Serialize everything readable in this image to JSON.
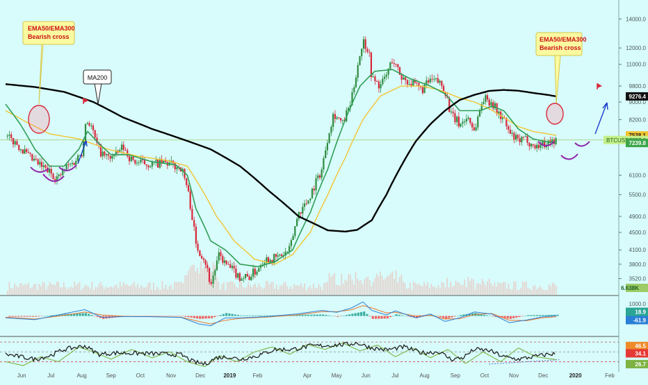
{
  "colors": {
    "background": "#d8fbfb",
    "up_candle": "#2e8b3e",
    "down_candle": "#d8283a",
    "ma200": "#000000",
    "ema50": "#2f9e55",
    "ema300": "#f2c531",
    "callout_fill": "#fafaa0",
    "callout_text": "#cc1111",
    "volume": "#e7c9c2",
    "macd_line": "#2a7fd6",
    "signal_line": "#e8762b",
    "hist_up": "#2aa596",
    "hist_down": "#ef5350",
    "rsi_main": "#222222",
    "rsi_alt": "#7cb342",
    "arc": "#8e24aa",
    "arrow": "#1034c8"
  },
  "chart_data": [
    {
      "type": "candlestick",
      "symbol": "BTCUSD",
      "scale": "log",
      "ylim": [
        3350,
        14600
      ],
      "y_ticks": [
        "14000.0",
        "12000.0",
        "11000.0",
        "9800.0",
        "9000.0",
        "8200.0",
        "7538.1",
        "7357.0",
        "6100.0",
        "5500.0",
        "4900.0",
        "4500.0",
        "4100.0",
        "3800.0",
        "3520.0"
      ],
      "x_ticks": [
        "Jun",
        "Jul",
        "Aug",
        "Sep",
        "Oct",
        "Nov",
        "Dec",
        "2019",
        "Feb",
        "Apr",
        "May",
        "Jun",
        "Jul",
        "Aug",
        "Sep",
        "Oct",
        "Nov",
        "Dec",
        "2020",
        "Feb"
      ],
      "x_range": [
        0,
        20
      ],
      "price_path": [
        [
          0,
          7500
        ],
        [
          0.4,
          7200
        ],
        [
          0.8,
          6700
        ],
        [
          1.2,
          6400
        ],
        [
          1.5,
          6200
        ],
        [
          1.8,
          6000
        ],
        [
          2.1,
          6400
        ],
        [
          2.3,
          6500
        ],
        [
          2.6,
          6900
        ],
        [
          2.75,
          8200
        ],
        [
          2.9,
          8000
        ],
        [
          3.1,
          7200
        ],
        [
          3.3,
          6800
        ],
        [
          3.5,
          6700
        ],
        [
          3.8,
          6800
        ],
        [
          4.0,
          7100
        ],
        [
          4.3,
          6600
        ],
        [
          4.6,
          6500
        ],
        [
          5.0,
          6480
        ],
        [
          5.5,
          6500
        ],
        [
          5.8,
          6400
        ],
        [
          6.0,
          6350
        ],
        [
          6.2,
          5700
        ],
        [
          6.35,
          5000
        ],
        [
          6.5,
          4200
        ],
        [
          6.8,
          3900
        ],
        [
          7.0,
          3400
        ],
        [
          7.15,
          3700
        ],
        [
          7.3,
          4000
        ],
        [
          7.5,
          3800
        ],
        [
          7.7,
          3700
        ],
        [
          8.0,
          3550
        ],
        [
          8.3,
          3550
        ],
        [
          8.6,
          3700
        ],
        [
          8.8,
          3900
        ],
        [
          9.2,
          3920
        ],
        [
          9.5,
          4000
        ],
        [
          9.7,
          4100
        ],
        [
          10.0,
          5000
        ],
        [
          10.3,
          5300
        ],
        [
          10.5,
          5700
        ],
        [
          10.8,
          6300
        ],
        [
          11.0,
          7500
        ],
        [
          11.2,
          8500
        ],
        [
          11.5,
          8000
        ],
        [
          11.8,
          9000
        ],
        [
          12.0,
          10800
        ],
        [
          12.2,
          12500
        ],
        [
          12.4,
          11800
        ],
        [
          12.5,
          10200
        ],
        [
          12.8,
          9800
        ],
        [
          13.0,
          10400
        ],
        [
          13.2,
          11300
        ],
        [
          13.5,
          10300
        ],
        [
          13.8,
          10000
        ],
        [
          14.2,
          9600
        ],
        [
          14.5,
          10100
        ],
        [
          14.8,
          10000
        ],
        [
          15.0,
          9600
        ],
        [
          15.2,
          8400
        ],
        [
          15.5,
          8000
        ],
        [
          15.8,
          8300
        ],
        [
          16.0,
          7700
        ],
        [
          16.3,
          9200
        ],
        [
          16.6,
          9000
        ],
        [
          16.8,
          8500
        ],
        [
          17.0,
          8200
        ],
        [
          17.2,
          7600
        ],
        [
          17.5,
          7300
        ],
        [
          17.8,
          7400
        ],
        [
          18.0,
          7100
        ],
        [
          18.3,
          7200
        ],
        [
          18.5,
          7250
        ],
        [
          18.8,
          7357
        ]
      ],
      "series": [
        {
          "name": "MA200",
          "values": [
            [
              0,
              9900
            ],
            [
              1,
              9750
            ],
            [
              2,
              9500
            ],
            [
              3,
              9000
            ],
            [
              4,
              8300
            ],
            [
              5,
              7800
            ],
            [
              6,
              7400
            ],
            [
              7,
              7000
            ],
            [
              8,
              6400
            ],
            [
              9,
              5600
            ],
            [
              10,
              4900
            ],
            [
              11,
              4550
            ],
            [
              11.6,
              4520
            ],
            [
              12,
              4560
            ],
            [
              12.5,
              4800
            ],
            [
              13,
              5500
            ],
            [
              13.5,
              6400
            ],
            [
              14,
              7300
            ],
            [
              14.5,
              8000
            ],
            [
              15,
              8600
            ],
            [
              15.5,
              9100
            ],
            [
              16,
              9350
            ],
            [
              16.5,
              9550
            ],
            [
              17,
              9600
            ],
            [
              17.5,
              9560
            ],
            [
              18,
              9450
            ],
            [
              18.5,
              9350
            ],
            [
              18.8,
              9276.4
            ]
          ]
        },
        {
          "name": "EMA50",
          "values": [
            [
              0,
              8900
            ],
            [
              0.5,
              8000
            ],
            [
              1,
              7000
            ],
            [
              1.5,
              6400
            ],
            [
              2,
              6400
            ],
            [
              2.5,
              7000
            ],
            [
              2.8,
              7700
            ],
            [
              3.2,
              7200
            ],
            [
              3.6,
              6800
            ],
            [
              4.2,
              6800
            ],
            [
              5,
              6550
            ],
            [
              5.8,
              6450
            ],
            [
              6.2,
              6100
            ],
            [
              6.5,
              5100
            ],
            [
              7,
              4300
            ],
            [
              7.5,
              4100
            ],
            [
              8,
              3800
            ],
            [
              8.6,
              3750
            ],
            [
              9.2,
              3850
            ],
            [
              9.8,
              4100
            ],
            [
              10.4,
              5000
            ],
            [
              11,
              6300
            ],
            [
              11.6,
              8200
            ],
            [
              12.1,
              9800
            ],
            [
              12.6,
              10600
            ],
            [
              13.2,
              10700
            ],
            [
              13.8,
              10200
            ],
            [
              14.5,
              9800
            ],
            [
              15,
              9400
            ],
            [
              15.5,
              8600
            ],
            [
              16.2,
              8600
            ],
            [
              16.6,
              8800
            ],
            [
              17,
              8600
            ],
            [
              17.5,
              7800
            ],
            [
              18,
              7400
            ],
            [
              18.5,
              7280
            ],
            [
              18.8,
              7239.8
            ]
          ]
        },
        {
          "name": "EMA300",
          "values": [
            [
              0,
              8600
            ],
            [
              0.7,
              8100
            ],
            [
              1.5,
              7600
            ],
            [
              2.5,
              7400
            ],
            [
              3.5,
              7000
            ],
            [
              4.5,
              6750
            ],
            [
              5.5,
              6600
            ],
            [
              6.2,
              6400
            ],
            [
              6.6,
              5800
            ],
            [
              7.2,
              4900
            ],
            [
              7.8,
              4300
            ],
            [
              8.5,
              3900
            ],
            [
              9.2,
              3800
            ],
            [
              9.8,
              4000
            ],
            [
              10.4,
              4500
            ],
            [
              11,
              5500
            ],
            [
              11.6,
              6700
            ],
            [
              12.2,
              8200
            ],
            [
              12.8,
              9300
            ],
            [
              13.5,
              9800
            ],
            [
              14.2,
              9800
            ],
            [
              14.8,
              9600
            ],
            [
              15.5,
              9200
            ],
            [
              16,
              9000
            ],
            [
              16.5,
              8700
            ],
            [
              17,
              8300
            ],
            [
              17.5,
              7900
            ],
            [
              18,
              7700
            ],
            [
              18.5,
              7600
            ],
            [
              18.8,
              7538.1
            ]
          ]
        }
      ],
      "price_labels": [
        {
          "name": "MA200",
          "value": 9276.4,
          "text": "9276.4"
        },
        {
          "name": "EMA300",
          "value": 7538.1,
          "text": "7538.1"
        },
        {
          "name": "Last",
          "value": 7357.0,
          "text": "7357.0"
        },
        {
          "name": "EMA50",
          "value": 7239.8,
          "text": "7239.8"
        }
      ],
      "annotations": {
        "callout_left": {
          "line1": "EMA50/EMA300",
          "line2": "Bearish cross"
        },
        "callout_right": {
          "line1": "EMA50/EMA300",
          "line2": "Bearish cross"
        },
        "ma200_label": "MA200",
        "volume_label": "6.638K"
      }
    },
    {
      "type": "line",
      "panel": "MACD",
      "ylim": [
        -1500,
        1500
      ],
      "y_ticks": [
        "1000.0"
      ],
      "latest_values": [
        "18.9",
        "-61.9"
      ],
      "macd_path": [
        [
          0,
          -150
        ],
        [
          1,
          -300
        ],
        [
          2,
          180
        ],
        [
          2.7,
          520
        ],
        [
          3.3,
          -120
        ],
        [
          4,
          -50
        ],
        [
          5,
          -60
        ],
        [
          6,
          -120
        ],
        [
          6.6,
          -650
        ],
        [
          7,
          -800
        ],
        [
          7.5,
          -150
        ],
        [
          8,
          -160
        ],
        [
          9,
          -40
        ],
        [
          10,
          180
        ],
        [
          10.8,
          450
        ],
        [
          11.3,
          300
        ],
        [
          11.8,
          650
        ],
        [
          12.2,
          1150
        ],
        [
          12.5,
          450
        ],
        [
          13,
          80
        ],
        [
          13.3,
          420
        ],
        [
          14,
          -150
        ],
        [
          14.5,
          160
        ],
        [
          15,
          -450
        ],
        [
          15.5,
          -150
        ],
        [
          16,
          330
        ],
        [
          16.6,
          160
        ],
        [
          17.2,
          -550
        ],
        [
          17.8,
          -320
        ],
        [
          18.3,
          -80
        ],
        [
          18.8,
          18.9
        ]
      ],
      "signal_path": [
        [
          0,
          -100
        ],
        [
          1,
          -250
        ],
        [
          2,
          50
        ],
        [
          2.7,
          320
        ],
        [
          3.3,
          80
        ],
        [
          4,
          -20
        ],
        [
          5,
          -50
        ],
        [
          6,
          -100
        ],
        [
          6.6,
          -450
        ],
        [
          7,
          -650
        ],
        [
          7.5,
          -350
        ],
        [
          8,
          -200
        ],
        [
          9,
          -80
        ],
        [
          10,
          100
        ],
        [
          10.8,
          350
        ],
        [
          11.3,
          350
        ],
        [
          11.8,
          500
        ],
        [
          12.2,
          850
        ],
        [
          12.5,
          650
        ],
        [
          13,
          250
        ],
        [
          13.3,
          300
        ],
        [
          14,
          0
        ],
        [
          14.5,
          60
        ],
        [
          15,
          -250
        ],
        [
          15.5,
          -220
        ],
        [
          16,
          120
        ],
        [
          16.6,
          200
        ],
        [
          17.2,
          -350
        ],
        [
          17.8,
          -380
        ],
        [
          18.3,
          -150
        ],
        [
          18.8,
          -61.9
        ]
      ],
      "hist_colors": [
        "hist_up",
        "hist_down"
      ]
    },
    {
      "type": "line",
      "panel": "RSI",
      "ylim": [
        15,
        80
      ],
      "latest_values": [
        "46.5",
        "34.1",
        "26.7"
      ],
      "levels": [
        70,
        50,
        30
      ],
      "rsi_path": [
        [
          0,
          45
        ],
        [
          0.5,
          40
        ],
        [
          1,
          35
        ],
        [
          1.5,
          42
        ],
        [
          2,
          55
        ],
        [
          2.7,
          62
        ],
        [
          3.2,
          45
        ],
        [
          3.8,
          48
        ],
        [
          4.5,
          47
        ],
        [
          5.3,
          46
        ],
        [
          6,
          44
        ],
        [
          6.4,
          30
        ],
        [
          6.8,
          25
        ],
        [
          7.2,
          38
        ],
        [
          7.6,
          40
        ],
        [
          8,
          35
        ],
        [
          8.6,
          42
        ],
        [
          9.2,
          55
        ],
        [
          9.8,
          55
        ],
        [
          10.4,
          62
        ],
        [
          11,
          63
        ],
        [
          11.6,
          65
        ],
        [
          12,
          68
        ],
        [
          12.5,
          58
        ],
        [
          13,
          54
        ],
        [
          13.6,
          60
        ],
        [
          14.2,
          48
        ],
        [
          14.8,
          50
        ],
        [
          15.2,
          35
        ],
        [
          15.6,
          38
        ],
        [
          16,
          55
        ],
        [
          16.5,
          53
        ],
        [
          17,
          40
        ],
        [
          17.5,
          35
        ],
        [
          18,
          40
        ],
        [
          18.5,
          45
        ],
        [
          18.8,
          46.5
        ]
      ],
      "alt_path": [
        [
          0,
          30
        ],
        [
          0.6,
          22
        ],
        [
          1.2,
          40
        ],
        [
          1.8,
          30
        ],
        [
          2.5,
          60
        ],
        [
          3,
          50
        ],
        [
          3.6,
          35
        ],
        [
          4.3,
          55
        ],
        [
          5,
          38
        ],
        [
          5.6,
          50
        ],
        [
          6.2,
          30
        ],
        [
          6.8,
          20
        ],
        [
          7.3,
          42
        ],
        [
          7.9,
          30
        ],
        [
          8.5,
          50
        ],
        [
          9.1,
          60
        ],
        [
          9.7,
          45
        ],
        [
          10.3,
          65
        ],
        [
          10.9,
          55
        ],
        [
          11.5,
          68
        ],
        [
          12.1,
          52
        ],
        [
          12.7,
          64
        ],
        [
          13.3,
          40
        ],
        [
          13.9,
          58
        ],
        [
          14.5,
          38
        ],
        [
          15.1,
          55
        ],
        [
          15.7,
          26
        ],
        [
          16.3,
          50
        ],
        [
          16.9,
          30
        ],
        [
          17.5,
          58
        ],
        [
          18.1,
          40
        ],
        [
          18.8,
          34.1
        ]
      ]
    }
  ]
}
